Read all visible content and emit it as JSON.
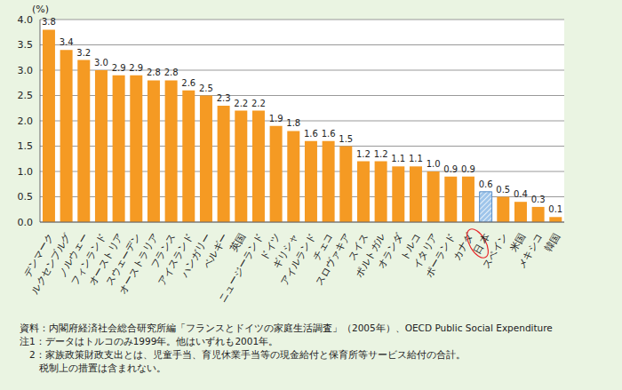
{
  "chart_data": {
    "type": "bar",
    "y_label": "(%)",
    "categories": [
      "デンマーク",
      "ルクセンブルグ",
      "ノルウェー",
      "フィンランド",
      "オーストリア",
      "スウェーデン",
      "オーストラリア",
      "フランス",
      "アイスランド",
      "ハンガリー",
      "ベルギー",
      "英国",
      "ニュージーランド",
      "ドイツ",
      "ギリシャ",
      "アイルランド",
      "チェコ",
      "スロヴァキア",
      "スイス",
      "ポルトガル",
      "オランダ",
      "トルコ",
      "イタリア",
      "ポーランド",
      "カナダ",
      "日 本",
      "スペイン",
      "米国",
      "メキシコ",
      "韓国"
    ],
    "values": [
      3.8,
      3.4,
      3.2,
      3.0,
      2.9,
      2.9,
      2.8,
      2.8,
      2.6,
      2.5,
      2.3,
      2.2,
      2.2,
      1.9,
      1.8,
      1.6,
      1.6,
      1.5,
      1.2,
      1.2,
      1.1,
      1.1,
      1.0,
      0.9,
      0.9,
      0.6,
      0.5,
      0.4,
      0.3,
      0.1
    ],
    "value_labels": [
      "3.8",
      "3.4",
      "3.2",
      "3.0",
      "2.9",
      "2.9",
      "2.8",
      "2.8",
      "2.6",
      "2.5",
      "2.3",
      "2.2",
      "2.2",
      "1.9",
      "1.8",
      "1.6",
      "1.6",
      "1.5",
      "1.2",
      "1.2",
      "1.1",
      "1.1",
      "1.0",
      "0.9",
      "0.9",
      "0.6",
      "0.5",
      "0.4",
      "0.3",
      "0.1"
    ],
    "colors": [
      "#f59a23",
      "#f59a23",
      "#f59a23",
      "#f59a23",
      "#f59a23",
      "#f59a23",
      "#f59a23",
      "#f59a23",
      "#f59a23",
      "#f59a23",
      "#f59a23",
      "#f59a23",
      "#f59a23",
      "#f59a23",
      "#f59a23",
      "#f59a23",
      "#f59a23",
      "#f59a23",
      "#f59a23",
      "#f59a23",
      "#f59a23",
      "#f59a23",
      "#f59a23",
      "#f59a23",
      "#f59a23",
      "#9fc5ea",
      "#f59a23",
      "#f59a23",
      "#f59a23",
      "#f59a23"
    ],
    "ylim": [
      0,
      4
    ],
    "yticks": [
      {
        "value": 0,
        "label": "0.0"
      },
      {
        "value": 0.5,
        "label": "0.5"
      },
      {
        "value": 1,
        "label": "1.0"
      },
      {
        "value": 1.5,
        "label": "1.5"
      },
      {
        "value": 2,
        "label": "2.0"
      },
      {
        "value": 2.5,
        "label": "2.5"
      },
      {
        "value": 3,
        "label": "3.0"
      },
      {
        "value": 3.5,
        "label": "3.5"
      },
      {
        "value": 4,
        "label": "4.0"
      }
    ],
    "grid": true,
    "data_labels": true,
    "annotations": [
      "資料：内閣府経済社会総合研究所編「フランスとドイツの家庭生活調査」（2005年）、OECD Public Social Expenditure",
      "注1：データはトルコのみ1999年。他はいずれも2001年。",
      "　2：家族政策財政支出とは、児童手当、育児休業手当等の現金給付と保育所等サービス給付の合計。",
      "　　税制上の措置は含まれない。"
    ]
  }
}
